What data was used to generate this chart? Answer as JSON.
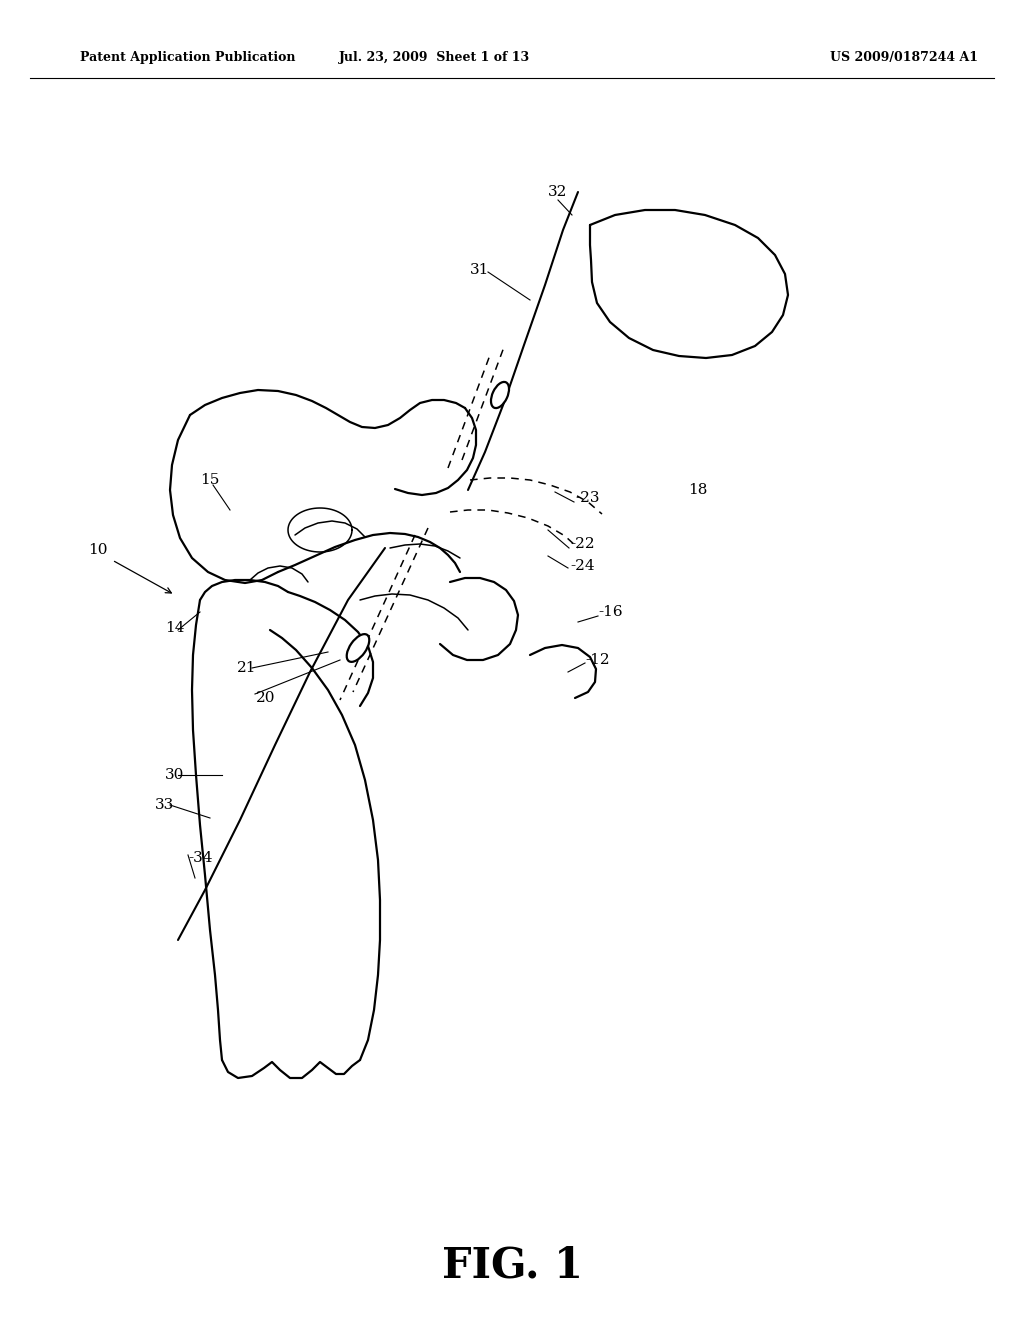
{
  "background_color": "#ffffff",
  "header_left": "Patent Application Publication",
  "header_mid": "Jul. 23, 2009  Sheet 1 of 13",
  "header_right": "US 2009/0187244 A1",
  "figure_label": "FIG. 1",
  "line_color": "#000000",
  "lw_main": 1.6,
  "lw_thin": 1.1,
  "label_fontsize": 11,
  "header_fontsize": 9,
  "fig_label_fontsize": 30
}
